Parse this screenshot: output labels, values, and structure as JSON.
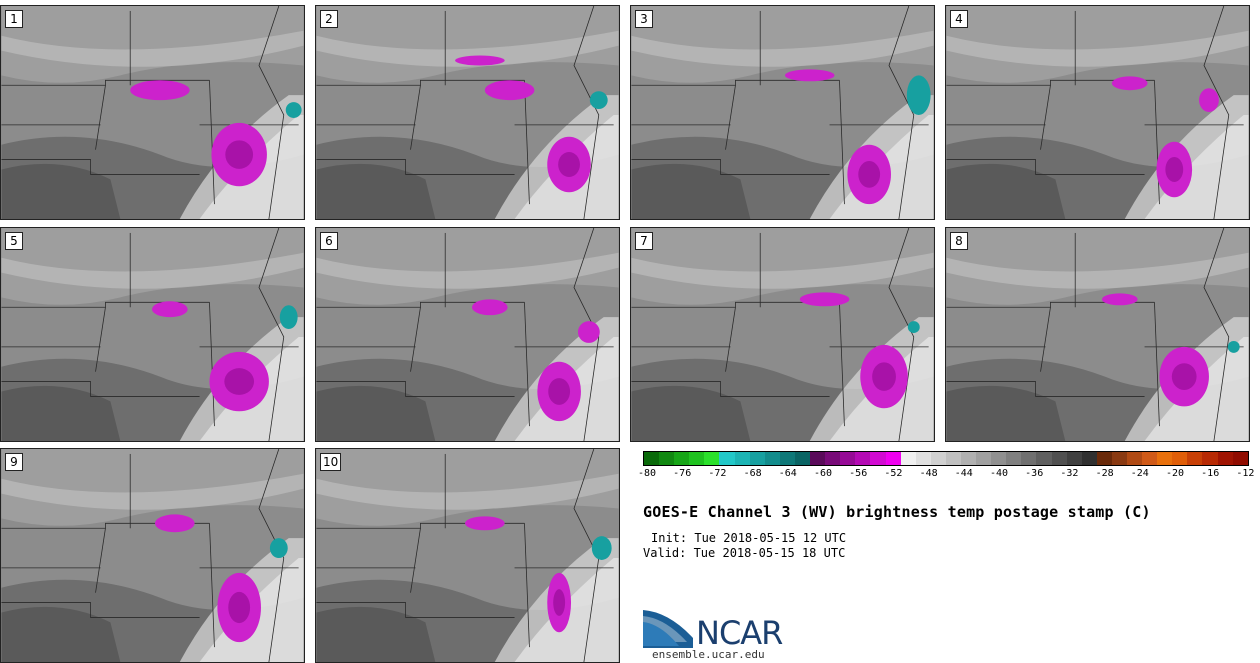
{
  "panels": [
    {
      "label": "1"
    },
    {
      "label": "2"
    },
    {
      "label": "3"
    },
    {
      "label": "4"
    },
    {
      "label": "5"
    },
    {
      "label": "6"
    },
    {
      "label": "7"
    },
    {
      "label": "8"
    },
    {
      "label": "9"
    },
    {
      "label": "10"
    }
  ],
  "colorbar": {
    "ticks": [
      "-80",
      "-76",
      "-72",
      "-68",
      "-64",
      "-60",
      "-56",
      "-52",
      "-48",
      "-44",
      "-40",
      "-36",
      "-32",
      "-28",
      "-24",
      "-20",
      "-16",
      "-12"
    ],
    "colors": [
      "#0a6a0a",
      "#118811",
      "#17a517",
      "#1fc21f",
      "#2be02b",
      "#22c8c8",
      "#1cb4b4",
      "#17a0a0",
      "#128c8c",
      "#0e7878",
      "#0a6464",
      "#5a0a5a",
      "#780a78",
      "#960a96",
      "#b40ab4",
      "#d20ad2",
      "#f000f0",
      "#f0f0f0",
      "#e0e0e0",
      "#d0d0d0",
      "#c0c0c0",
      "#b0b0b0",
      "#a0a0a0",
      "#909090",
      "#808080",
      "#707070",
      "#606060",
      "#505050",
      "#404040",
      "#303030",
      "#6a2a0a",
      "#8a3a12",
      "#b04a14",
      "#d05a18",
      "#e8700c",
      "#e05e08",
      "#c84006",
      "#b82a04",
      "#a01402",
      "#900c00"
    ]
  },
  "title": "GOES-E Channel 3 (WV) brightness temp postage stamp (C)",
  "init": "Init: Tue 2018-05-15 12 UTC",
  "valid": "Valid: Tue 2018-05-15 18 UTC",
  "logo": {
    "text": "NCAR",
    "url": "ensemble.ucar.edu"
  }
}
